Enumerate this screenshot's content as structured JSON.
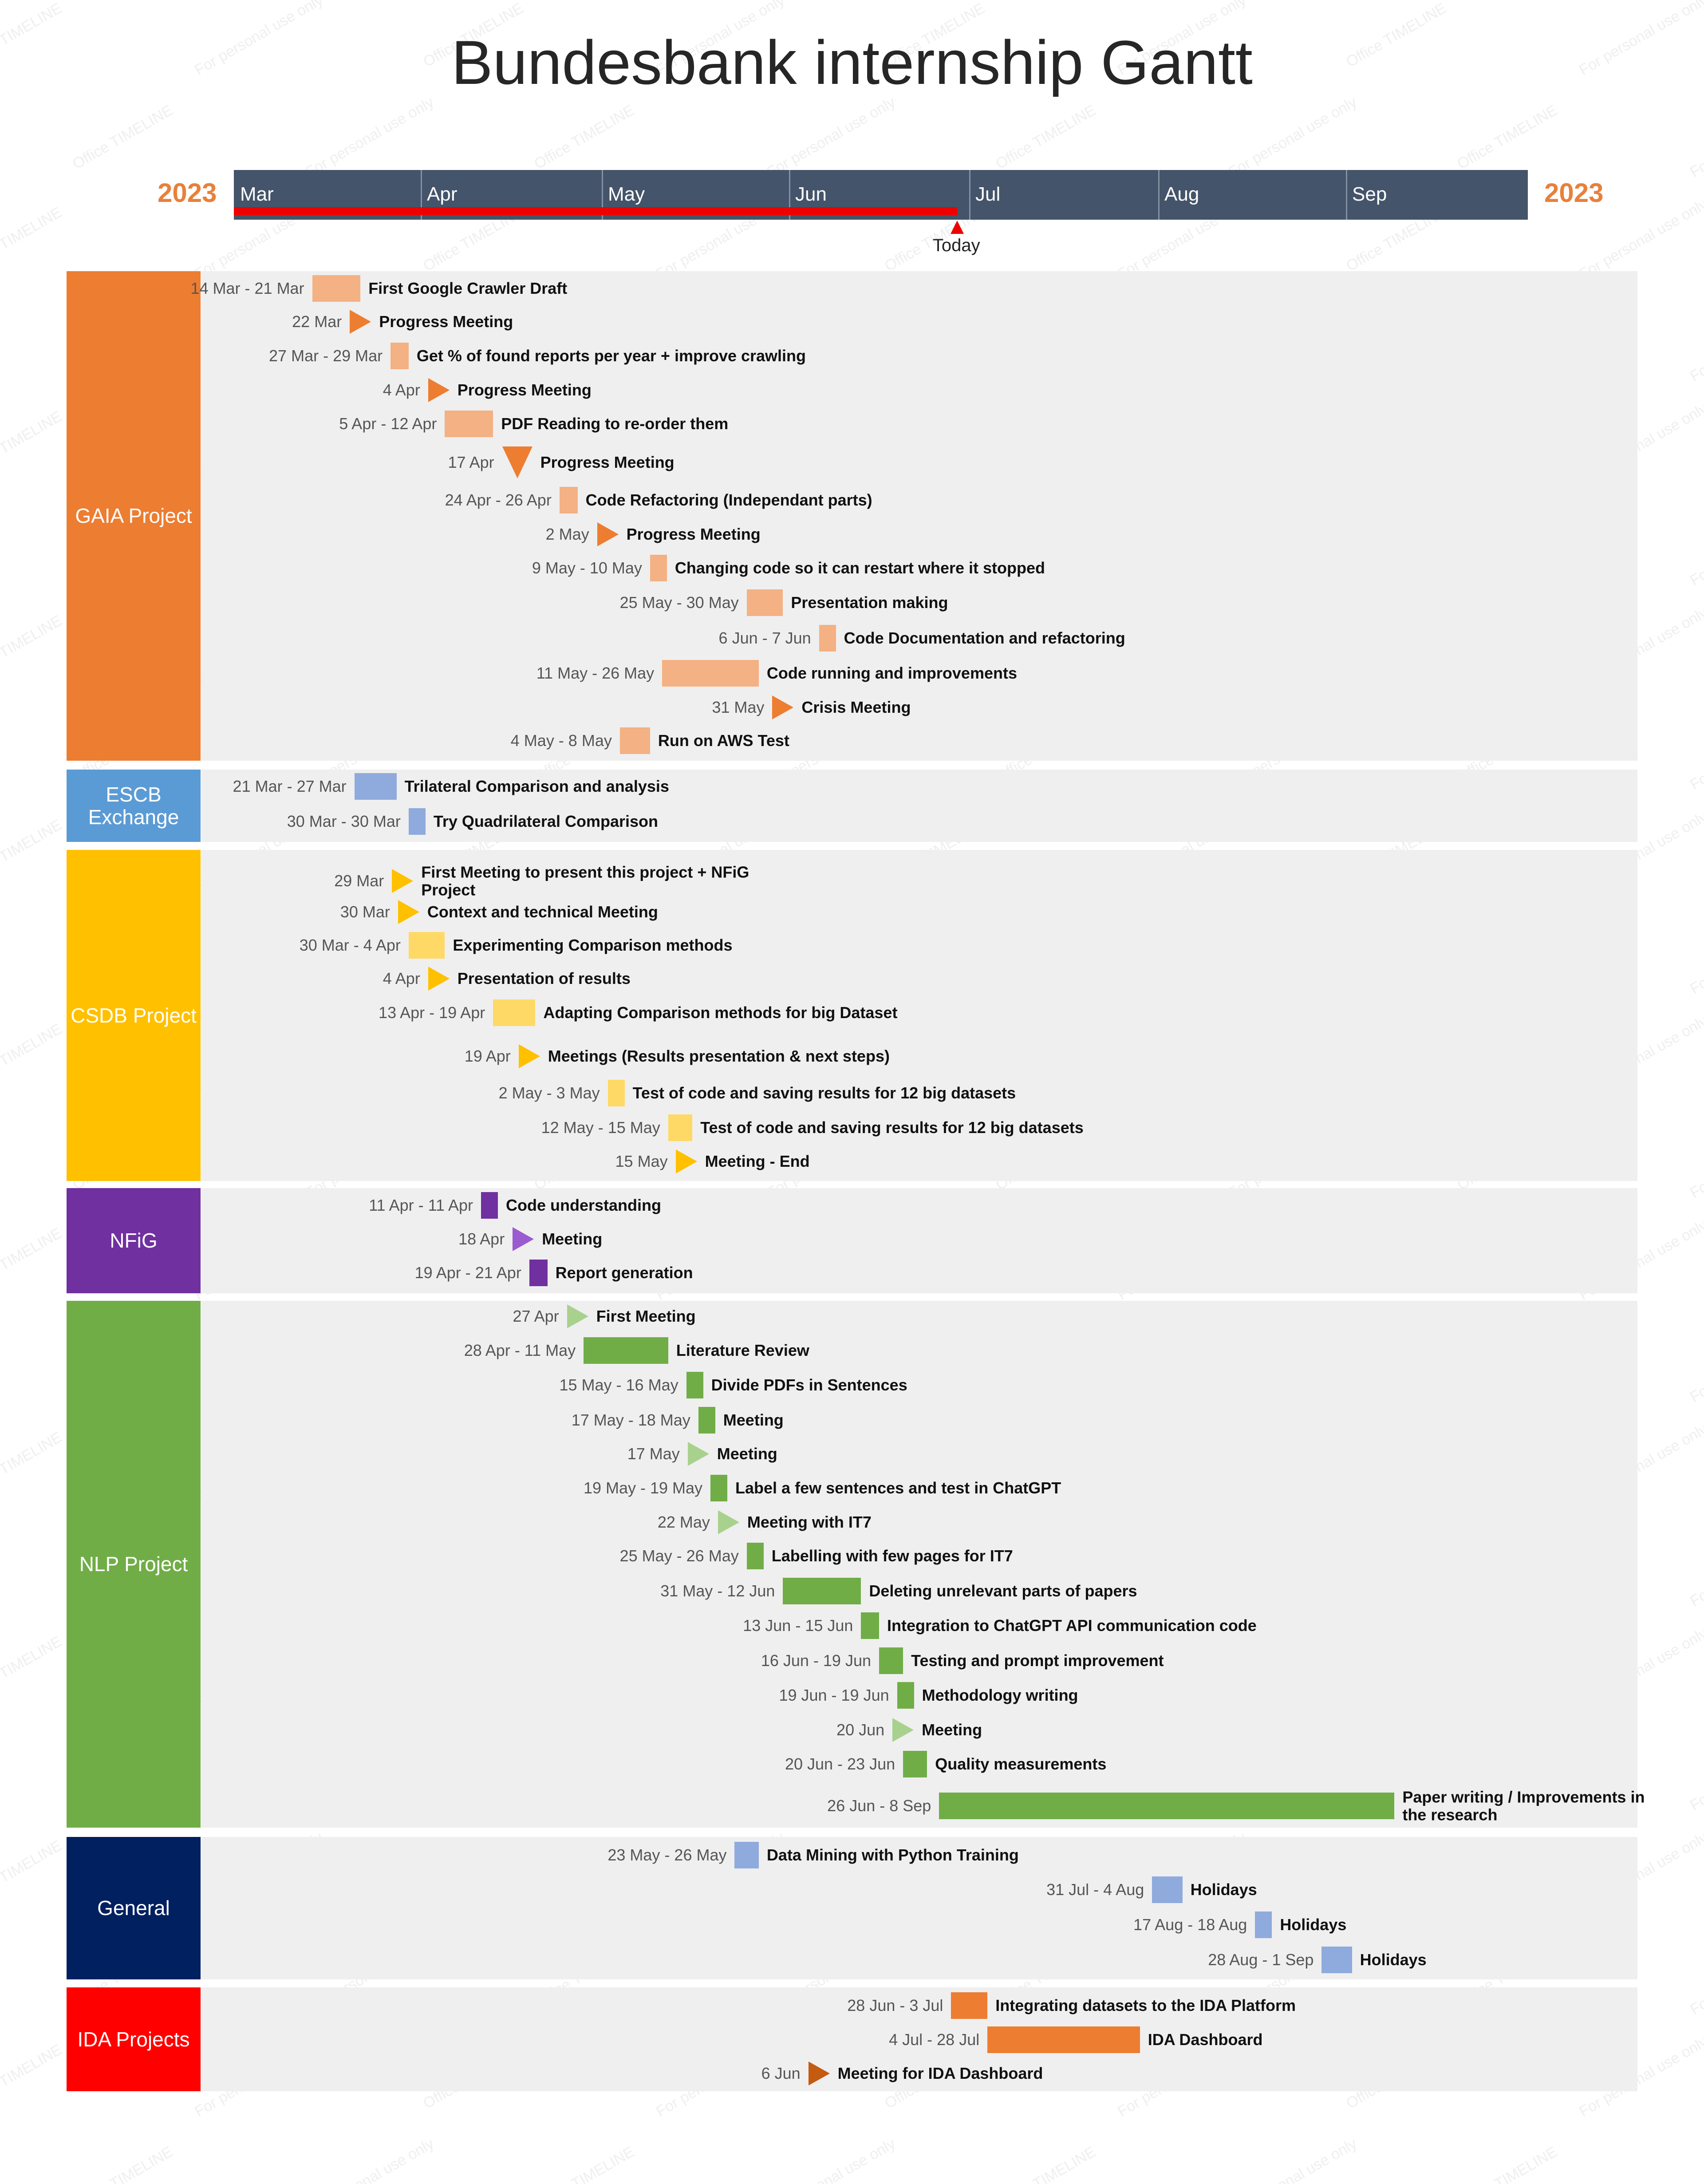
{
  "chart_data": {
    "type": "gantt",
    "title": "Bundesbank internship Gantt",
    "year_left": "2023",
    "year_right": "2023",
    "months": [
      "Mar",
      "Apr",
      "May",
      "Jun",
      "Jul",
      "Aug",
      "Sep"
    ],
    "today_label": "Today",
    "today": "2023-06-29",
    "colors": {
      "orange": "#ED7D31",
      "orange_light": "#F4B183",
      "blue": "#5B9BD5",
      "blue_light": "#8FAADC",
      "yellow": "#FFC000",
      "yellow_light": "#FFD966",
      "purple": "#7030A0",
      "purple_light": "#9A5CD0",
      "green": "#70AD47",
      "green_light": "#A9D18E",
      "navy": "#002060",
      "red": "#FF0000",
      "ida_orange": "#ED7D31",
      "ida_dark": "#C55A11",
      "timeline": "#44546A",
      "today_red": "#EE0000",
      "year": "#E8803A"
    },
    "groups": [
      {
        "name": "GAIA Project",
        "color": "#ED7D31",
        "tasks": [
          {
            "type": "task",
            "label": "First Google Crawler Draft",
            "date_text": "14 Mar - 21 Mar",
            "start": "2023-03-14",
            "end": "2023-03-21",
            "color": "#F4B183"
          },
          {
            "type": "milestone",
            "label": "Progress Meeting",
            "date_text": "22 Mar",
            "date": "2023-03-22",
            "color": "#ED7D31",
            "shape": "right"
          },
          {
            "type": "task",
            "label": "Get % of found reports per year + improve crawling",
            "date_text": "27 Mar - 29 Mar",
            "start": "2023-03-27",
            "end": "2023-03-29",
            "color": "#F4B183"
          },
          {
            "type": "milestone",
            "label": "Progress Meeting",
            "date_text": "4 Apr",
            "date": "2023-04-04",
            "color": "#ED7D31",
            "shape": "right"
          },
          {
            "type": "task",
            "label": "PDF Reading to re-order them",
            "date_text": "5 Apr - 12 Apr",
            "start": "2023-04-05",
            "end": "2023-04-12",
            "color": "#F4B183"
          },
          {
            "type": "milestone",
            "label": "Progress Meeting",
            "date_text": "17 Apr",
            "date": "2023-04-17",
            "color": "#ED7D31",
            "shape": "down"
          },
          {
            "type": "task",
            "label": "Code Refactoring (Independant parts)",
            "date_text": "24 Apr - 26 Apr",
            "start": "2023-04-24",
            "end": "2023-04-26",
            "color": "#F4B183"
          },
          {
            "type": "milestone",
            "label": "Progress Meeting",
            "date_text": "2 May",
            "date": "2023-05-02",
            "color": "#ED7D31",
            "shape": "right"
          },
          {
            "type": "task",
            "label": "Changing code so it can restart where it stopped",
            "date_text": "9 May - 10 May",
            "start": "2023-05-09",
            "end": "2023-05-10",
            "color": "#F4B183"
          },
          {
            "type": "task",
            "label": "Presentation making",
            "date_text": "25 May - 30 May",
            "start": "2023-05-25",
            "end": "2023-05-30",
            "color": "#F4B183"
          },
          {
            "type": "task",
            "label": "Code Documentation and refactoring",
            "date_text": "6 Jun - 7 Jun",
            "start": "2023-06-06",
            "end": "2023-06-07",
            "color": "#F4B183"
          },
          {
            "type": "task",
            "label": "Code running and improvements",
            "date_text": "11 May - 26 May",
            "start": "2023-05-11",
            "end": "2023-05-26",
            "color": "#F4B183"
          },
          {
            "type": "milestone",
            "label": "Crisis Meeting",
            "date_text": "31 May",
            "date": "2023-05-31",
            "color": "#ED7D31",
            "shape": "right"
          },
          {
            "type": "task",
            "label": "Run on AWS Test",
            "date_text": "4 May - 8 May",
            "start": "2023-05-04",
            "end": "2023-05-08",
            "color": "#F4B183"
          }
        ]
      },
      {
        "name": "ESCB\nExchange",
        "color": "#5B9BD5",
        "tasks": [
          {
            "type": "task",
            "label": "Trilateral Comparison and analysis",
            "date_text": "21 Mar - 27 Mar",
            "start": "2023-03-21",
            "end": "2023-03-27",
            "color": "#8FAADC"
          },
          {
            "type": "task",
            "label": "Try Quadrilateral Comparison",
            "date_text": "30 Mar - 30 Mar",
            "start": "2023-03-30",
            "end": "2023-03-30",
            "color": "#8FAADC"
          }
        ]
      },
      {
        "name": "CSDB Project",
        "color": "#FFC000",
        "tasks": [
          {
            "type": "milestone",
            "label": "First Meeting to present this project + NFiG Project",
            "date_text": "29 Mar",
            "date": "2023-03-29",
            "color": "#FFC000",
            "shape": "right",
            "lines": 2
          },
          {
            "type": "milestone",
            "label": "Context and technical Meeting",
            "date_text": "30 Mar",
            "date": "2023-03-30",
            "color": "#FFC000",
            "shape": "right"
          },
          {
            "type": "task",
            "label": "Experimenting Comparison methods",
            "date_text": "30 Mar - 4 Apr",
            "start": "2023-03-30",
            "end": "2023-04-04",
            "color": "#FFD966"
          },
          {
            "type": "milestone",
            "label": "Presentation of results",
            "date_text": "4 Apr",
            "date": "2023-04-04",
            "color": "#FFC000",
            "shape": "right"
          },
          {
            "type": "task",
            "label": "Adapting Comparison methods for big Dataset",
            "date_text": "13 Apr - 19 Apr",
            "start": "2023-04-13",
            "end": "2023-04-19",
            "color": "#FFD966"
          },
          {
            "type": "milestone",
            "label": "Meetings (Results presentation & next steps)",
            "date_text": "19 Apr",
            "date": "2023-04-19",
            "color": "#FFC000",
            "shape": "right",
            "lines": 2
          },
          {
            "type": "task",
            "label": "Test of code and saving results for 12 big datasets",
            "date_text": "2 May - 3 May",
            "start": "2023-05-02",
            "end": "2023-05-03",
            "color": "#FFD966"
          },
          {
            "type": "task",
            "label": "Test of code and saving results for 12 big datasets",
            "date_text": "12 May - 15 May",
            "start": "2023-05-12",
            "end": "2023-05-15",
            "color": "#FFD966"
          },
          {
            "type": "milestone",
            "label": "Meeting - End",
            "date_text": "15 May",
            "date": "2023-05-15",
            "color": "#FFC000",
            "shape": "right"
          }
        ]
      },
      {
        "name": "NFiG",
        "color": "#7030A0",
        "tasks": [
          {
            "type": "task",
            "label": "Code understanding",
            "date_text": "11 Apr - 11 Apr",
            "start": "2023-04-11",
            "end": "2023-04-11",
            "color": "#7030A0"
          },
          {
            "type": "milestone",
            "label": "Meeting",
            "date_text": "18 Apr",
            "date": "2023-04-18",
            "color": "#9A5CD0",
            "shape": "right"
          },
          {
            "type": "task",
            "label": "Report generation",
            "date_text": "19 Apr - 21 Apr",
            "start": "2023-04-19",
            "end": "2023-04-21",
            "color": "#7030A0"
          }
        ]
      },
      {
        "name": "NLP Project",
        "color": "#70AD47",
        "tasks": [
          {
            "type": "milestone",
            "label": "First Meeting",
            "date_text": "27 Apr",
            "date": "2023-04-27",
            "color": "#A9D18E",
            "shape": "right"
          },
          {
            "type": "task",
            "label": "Literature Review",
            "date_text": "28 Apr - 11 May",
            "start": "2023-04-28",
            "end": "2023-05-11",
            "color": "#70AD47"
          },
          {
            "type": "task",
            "label": "Divide PDFs in Sentences",
            "date_text": "15 May - 16 May",
            "start": "2023-05-15",
            "end": "2023-05-16",
            "color": "#70AD47"
          },
          {
            "type": "task",
            "label": "Meeting",
            "date_text": "17 May - 18 May",
            "start": "2023-05-17",
            "end": "2023-05-18",
            "color": "#70AD47"
          },
          {
            "type": "milestone",
            "label": "Meeting",
            "date_text": "17 May",
            "date": "2023-05-17",
            "color": "#A9D18E",
            "shape": "right"
          },
          {
            "type": "task",
            "label": "Label a few sentences and test in ChatGPT",
            "date_text": "19 May - 19 May",
            "start": "2023-05-19",
            "end": "2023-05-19",
            "color": "#70AD47"
          },
          {
            "type": "milestone",
            "label": "Meeting with IT7",
            "date_text": "22 May",
            "date": "2023-05-22",
            "color": "#A9D18E",
            "shape": "right"
          },
          {
            "type": "task",
            "label": "Labelling with few pages for IT7",
            "date_text": "25 May - 26 May",
            "start": "2023-05-25",
            "end": "2023-05-26",
            "color": "#70AD47"
          },
          {
            "type": "task",
            "label": "Deleting unrelevant parts of papers",
            "date_text": "31 May - 12 Jun",
            "start": "2023-05-31",
            "end": "2023-06-12",
            "color": "#70AD47"
          },
          {
            "type": "task",
            "label": "Integration to ChatGPT API communication code",
            "date_text": "13 Jun - 15 Jun",
            "start": "2023-06-13",
            "end": "2023-06-15",
            "color": "#70AD47"
          },
          {
            "type": "task",
            "label": "Testing and prompt improvement",
            "date_text": "16 Jun - 19 Jun",
            "start": "2023-06-16",
            "end": "2023-06-19",
            "color": "#70AD47"
          },
          {
            "type": "task",
            "label": "Methodology writing",
            "date_text": "19 Jun - 19 Jun",
            "start": "2023-06-19",
            "end": "2023-06-19",
            "color": "#70AD47"
          },
          {
            "type": "milestone",
            "label": "Meeting",
            "date_text": "20 Jun",
            "date": "2023-06-20",
            "color": "#A9D18E",
            "shape": "right"
          },
          {
            "type": "task",
            "label": "Quality measurements",
            "date_text": "20 Jun - 23 Jun",
            "start": "2023-06-20",
            "end": "2023-06-23",
            "color": "#70AD47"
          },
          {
            "type": "task",
            "label": "Paper writing / Improvements in the research",
            "date_text": "26 Jun - 8 Sep",
            "start": "2023-06-26",
            "end": "2023-09-08",
            "color": "#70AD47",
            "lines": 2
          }
        ]
      },
      {
        "name": "General",
        "color": "#002060",
        "tasks": [
          {
            "type": "task",
            "label": "Data Mining with Python Training",
            "date_text": "23 May - 26 May",
            "start": "2023-05-23",
            "end": "2023-05-26",
            "color": "#8FAADC"
          },
          {
            "type": "task",
            "label": "Holidays",
            "date_text": "31 Jul - 4 Aug",
            "start": "2023-07-31",
            "end": "2023-08-04",
            "color": "#8FAADC"
          },
          {
            "type": "task",
            "label": "Holidays",
            "date_text": "17 Aug - 18 Aug",
            "start": "2023-08-17",
            "end": "2023-08-18",
            "color": "#8FAADC"
          },
          {
            "type": "task",
            "label": "Holidays",
            "date_text": "28 Aug - 1 Sep",
            "start": "2023-08-28",
            "end": "2023-09-01",
            "color": "#8FAADC"
          }
        ]
      },
      {
        "name": "IDA Projects",
        "color": "#FF0000",
        "tasks": [
          {
            "type": "task",
            "label": "Integrating datasets to the IDA Platform",
            "date_text": "28 Jun - 3 Jul",
            "start": "2023-06-28",
            "end": "2023-07-03",
            "color": "#ED7D31"
          },
          {
            "type": "task",
            "label": "IDA Dashboard",
            "date_text": "4 Jul - 28 Jul",
            "start": "2023-07-04",
            "end": "2023-07-28",
            "color": "#ED7D31"
          },
          {
            "type": "milestone",
            "label": "Meeting for IDA Dashboard",
            "date_text": "6 Jun",
            "date": "2023-06-06",
            "color": "#C55A11",
            "shape": "right"
          }
        ]
      }
    ]
  },
  "watermarks": [
    "Office TIMELINE",
    "For personal use only"
  ]
}
